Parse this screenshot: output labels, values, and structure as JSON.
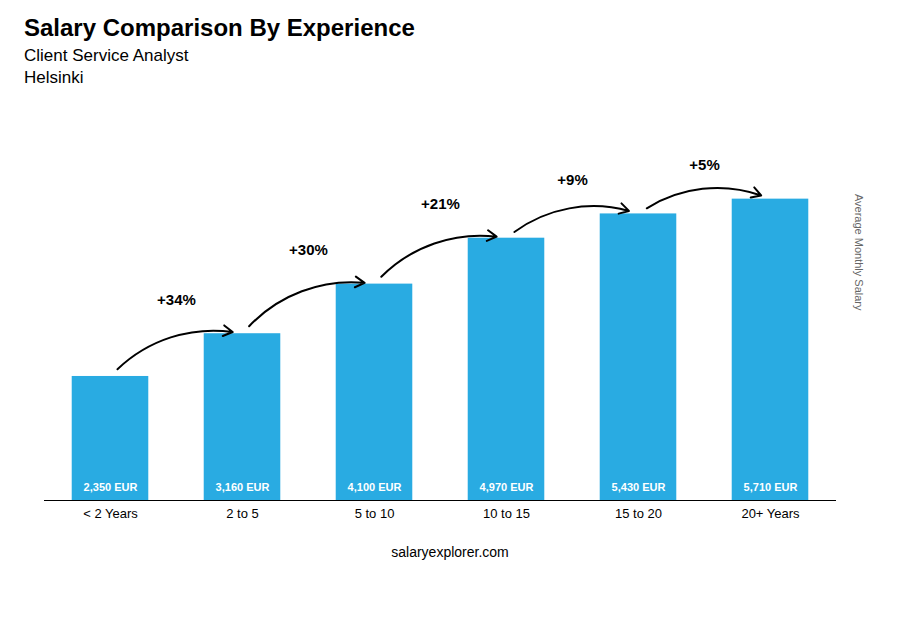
{
  "chart_data": {
    "type": "bar",
    "title": "Salary Comparison By Experience",
    "subtitle": [
      "Client Service Analyst",
      "Helsinki"
    ],
    "caption": "salaryexplorer.com",
    "ylabel": "Average Monthly Salary",
    "categories": [
      "< 2 Years",
      "2 to 5",
      "5 to 10",
      "10 to 15",
      "15 to 20",
      "20+ Years"
    ],
    "values": [
      2350,
      3160,
      4100,
      4970,
      5430,
      5710
    ],
    "value_labels": [
      "2,350 EUR",
      "3,160 EUR",
      "4,100 EUR",
      "4,970 EUR",
      "5,430 EUR",
      "5,710 EUR"
    ],
    "data_labels": true,
    "annotations": [
      "+34%",
      "+30%",
      "+21%",
      "+9%",
      "+5%"
    ],
    "color": "#29ABE2",
    "ylim": [
      0,
      7200
    ],
    "tick_labels": "x",
    "grid": false
  }
}
